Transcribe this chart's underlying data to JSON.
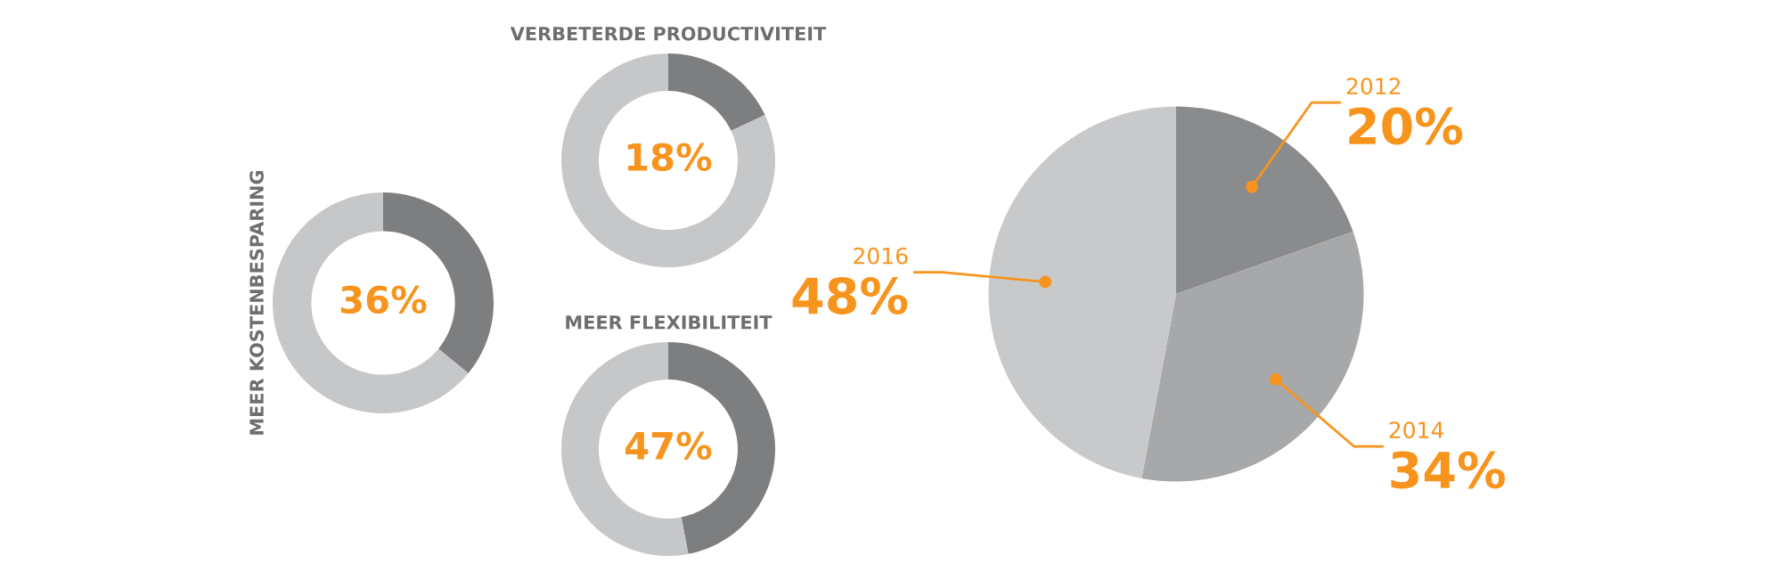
{
  "chart_data": [
    {
      "type": "donut",
      "title": "MEER KOSTENBESPARING",
      "categories": [
        null,
        null
      ],
      "values": [
        36,
        64
      ],
      "colors": [
        "#7d7e80",
        "#c6c7c9"
      ],
      "value_labels": [
        "36%",
        null
      ]
    },
    {
      "type": "donut",
      "title": "VERBETERDE PRODUCTIVITEIT",
      "categories": [
        null,
        null
      ],
      "values": [
        18,
        82
      ],
      "colors": [
        "#7d7e80",
        "#c6c7c9"
      ],
      "value_labels": [
        "18%",
        null
      ]
    },
    {
      "type": "donut",
      "title": "MEER FLEXIBILITEIT",
      "categories": [
        null,
        null
      ],
      "values": [
        47,
        53
      ],
      "colors": [
        "#7d7e80",
        "#c6c7c9"
      ],
      "value_labels": [
        "47%",
        null
      ]
    },
    {
      "type": "pie",
      "categories": [
        "2012",
        "2014",
        "2016"
      ],
      "values": [
        20,
        34,
        48
      ],
      "colors": [
        "#8a8b8d",
        "#a7a8aa",
        "#c8c9cb"
      ],
      "value_labels": [
        "20%",
        "34%",
        "48%"
      ]
    }
  ]
}
